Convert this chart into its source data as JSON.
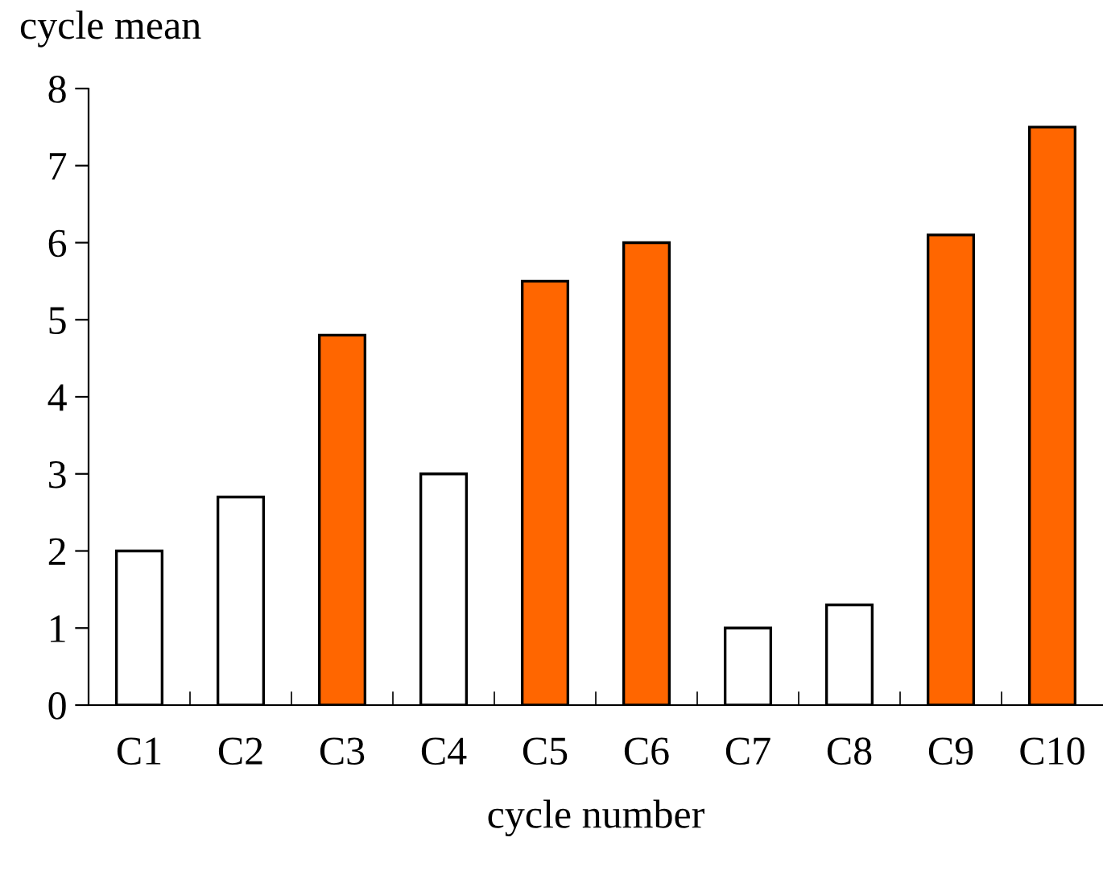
{
  "chart_data": {
    "type": "bar",
    "xlabel": "cycle number",
    "ylabel": "cycle mean",
    "categories": [
      "C1",
      "C2",
      "C3",
      "C4",
      "C5",
      "C6",
      "C7",
      "C8",
      "C9",
      "C10"
    ],
    "values": [
      2,
      2.7,
      4.8,
      3,
      5.5,
      6,
      1,
      1.3,
      6.1,
      7.5
    ],
    "colors": [
      "#ffffff",
      "#ffffff",
      "#ff6600",
      "#ffffff",
      "#ff6600",
      "#ff6600",
      "#ffffff",
      "#ffffff",
      "#ff6600",
      "#ff6600"
    ],
    "ylim": [
      0,
      8
    ],
    "yticks": [
      0,
      1,
      2,
      3,
      4,
      5,
      6,
      7,
      8
    ],
    "grid": false,
    "legend": false
  }
}
